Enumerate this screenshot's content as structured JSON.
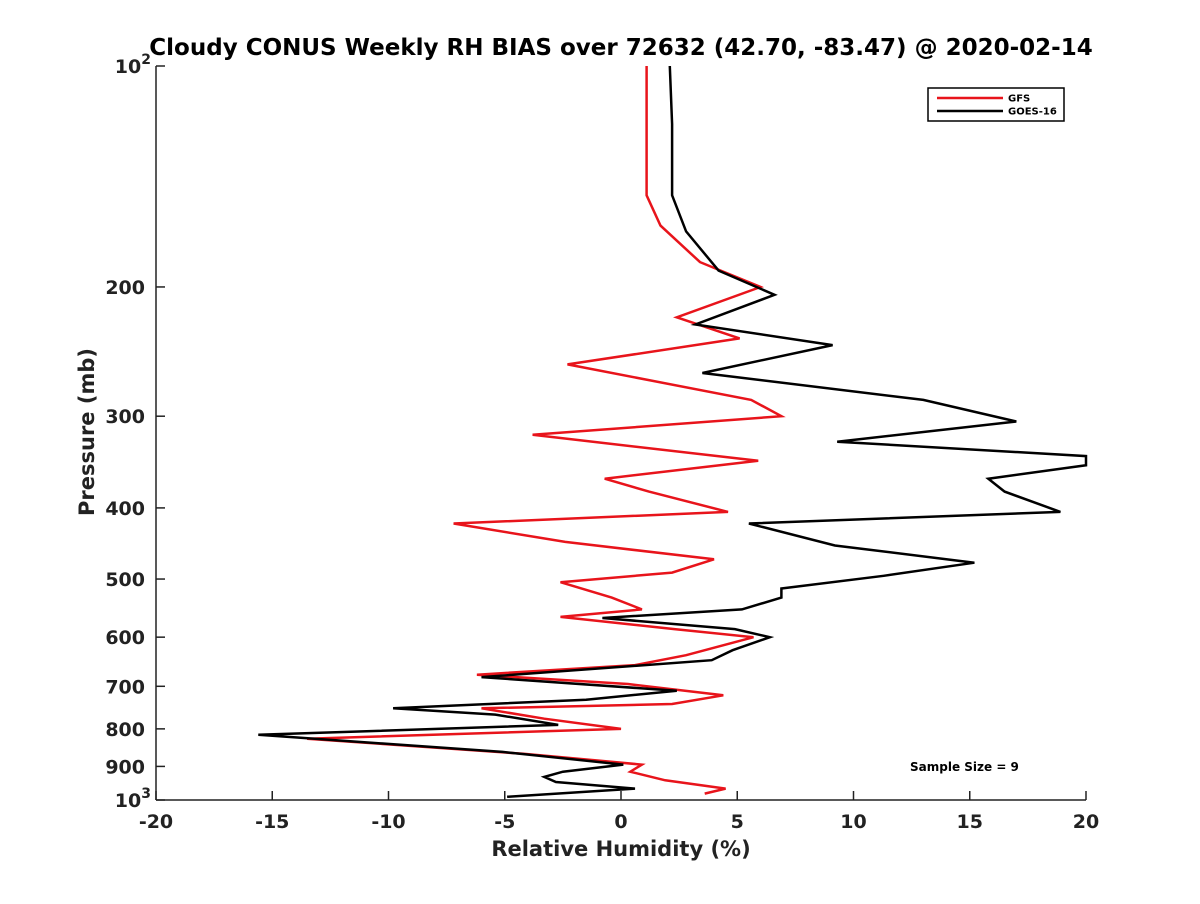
{
  "chart_data": {
    "type": "line",
    "title": "Cloudy CONUS Weekly RH BIAS over 72632 (42.70, -83.47) @ 2020-02-14",
    "xlabel": "Relative Humidity (%)",
    "ylabel": "Pressure (mb)",
    "xlim": [
      -20,
      20
    ],
    "ylim": [
      100,
      1000
    ],
    "y_scale": "log",
    "y_reversed": true,
    "x_ticks": [
      -20,
      -15,
      -10,
      -5,
      0,
      5,
      10,
      15,
      20
    ],
    "x_tick_labels": [
      "-20",
      "-15",
      "-10",
      "-5",
      "0",
      "5",
      "10",
      "15",
      "20"
    ],
    "y_ticks": [
      {
        "value": 100,
        "label": "10",
        "sup": "2"
      },
      {
        "value": 200,
        "label": "200",
        "sup": ""
      },
      {
        "value": 300,
        "label": "300",
        "sup": ""
      },
      {
        "value": 400,
        "label": "400",
        "sup": ""
      },
      {
        "value": 500,
        "label": "500",
        "sup": ""
      },
      {
        "value": 600,
        "label": "600",
        "sup": ""
      },
      {
        "value": 700,
        "label": "700",
        "sup": ""
      },
      {
        "value": 800,
        "label": "800",
        "sup": ""
      },
      {
        "value": 900,
        "label": "900",
        "sup": ""
      },
      {
        "value": 1000,
        "label": "10",
        "sup": "3"
      }
    ],
    "grid": false,
    "legend_position": "top-right",
    "annotation": "Sample Size = 9",
    "series": [
      {
        "name": "GFS",
        "color": "#e8141b",
        "points": [
          [
            1.1,
            100
          ],
          [
            1.1,
            150
          ],
          [
            1.7,
            165
          ],
          [
            3.4,
            185
          ],
          [
            6.0,
            200
          ],
          [
            2.4,
            220
          ],
          [
            5.1,
            235
          ],
          [
            -2.3,
            255
          ],
          [
            5.6,
            285
          ],
          [
            6.9,
            300
          ],
          [
            -3.8,
            318
          ],
          [
            5.9,
            345
          ],
          [
            -0.7,
            365
          ],
          [
            1.2,
            380
          ],
          [
            4.6,
            405
          ],
          [
            -7.2,
            420
          ],
          [
            -2.4,
            445
          ],
          [
            4.0,
            470
          ],
          [
            2.2,
            490
          ],
          [
            -2.6,
            505
          ],
          [
            -0.4,
            530
          ],
          [
            0.9,
            550
          ],
          [
            -2.6,
            563
          ],
          [
            2.3,
            585
          ],
          [
            5.7,
            600
          ],
          [
            2.8,
            635
          ],
          [
            0.6,
            655
          ],
          [
            -6.2,
            675
          ],
          [
            0.3,
            695
          ],
          [
            4.4,
            720
          ],
          [
            2.2,
            740
          ],
          [
            -6.0,
            750
          ],
          [
            -3.3,
            775
          ],
          [
            0.0,
            800
          ],
          [
            -13.5,
            825
          ],
          [
            -4.2,
            865
          ],
          [
            0.9,
            895
          ],
          [
            0.4,
            915
          ],
          [
            1.9,
            940
          ],
          [
            4.5,
            965
          ],
          [
            3.6,
            980
          ]
        ]
      },
      {
        "name": "GOES-16",
        "color": "#000000",
        "points": [
          [
            2.1,
            100
          ],
          [
            2.2,
            120
          ],
          [
            2.2,
            150
          ],
          [
            2.8,
            168
          ],
          [
            4.2,
            190
          ],
          [
            6.6,
            205
          ],
          [
            3.2,
            225
          ],
          [
            9.1,
            240
          ],
          [
            3.5,
            262
          ],
          [
            13.0,
            285
          ],
          [
            17.0,
            305
          ],
          [
            9.3,
            325
          ],
          [
            20.0,
            340
          ],
          [
            20.0,
            350
          ],
          [
            15.8,
            365
          ],
          [
            16.5,
            380
          ],
          [
            18.9,
            405
          ],
          [
            5.5,
            420
          ],
          [
            9.2,
            450
          ],
          [
            15.2,
            475
          ],
          [
            11.3,
            495
          ],
          [
            6.9,
            515
          ],
          [
            6.9,
            530
          ],
          [
            5.2,
            550
          ],
          [
            -0.8,
            565
          ],
          [
            4.9,
            585
          ],
          [
            6.4,
            600
          ],
          [
            4.8,
            625
          ],
          [
            3.9,
            645
          ],
          [
            -6.0,
            680
          ],
          [
            2.4,
            710
          ],
          [
            -1.5,
            730
          ],
          [
            -9.8,
            750
          ],
          [
            -5.4,
            765
          ],
          [
            -2.7,
            790
          ],
          [
            -15.6,
            815
          ],
          [
            -5.1,
            860
          ],
          [
            0.1,
            895
          ],
          [
            -2.5,
            915
          ],
          [
            -3.3,
            930
          ],
          [
            -2.8,
            945
          ],
          [
            0.6,
            965
          ],
          [
            -4.9,
            990
          ]
        ]
      }
    ]
  }
}
